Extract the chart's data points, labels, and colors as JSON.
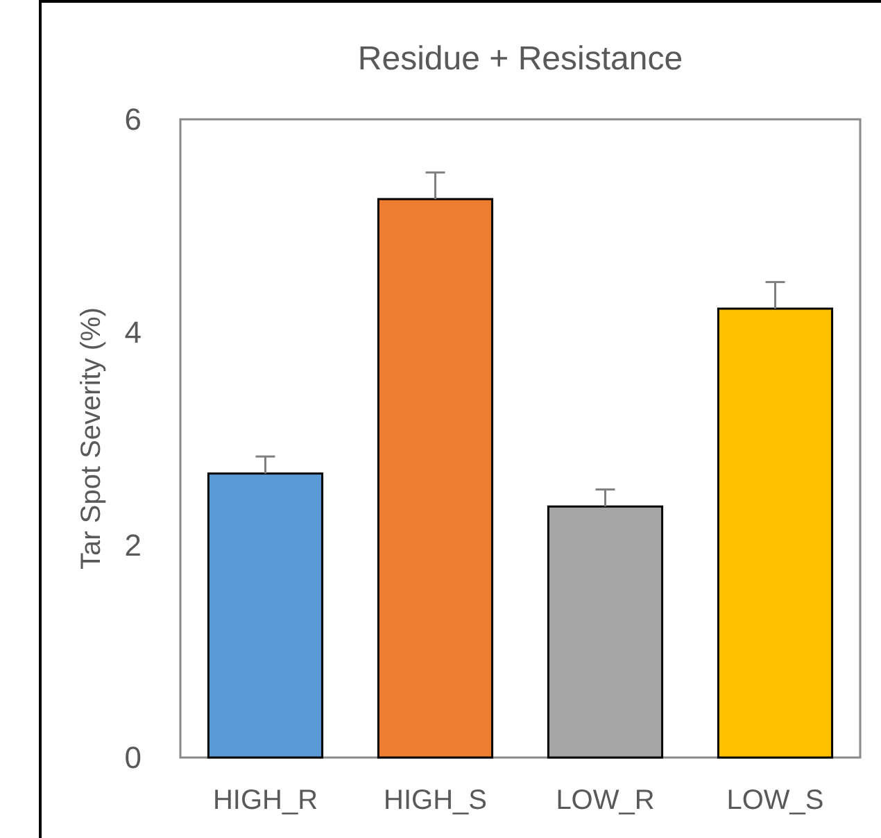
{
  "chart_data": {
    "type": "bar",
    "title": "Residue + Resistance",
    "ylabel": "Tar Spot Severity (%)",
    "categories": [
      "HIGH_R",
      "HIGH_S",
      "LOW_R",
      "LOW_S"
    ],
    "values": [
      2.67,
      5.25,
      2.36,
      4.22
    ],
    "colors": [
      "#5b9bd5",
      "#ed7d31",
      "#a5a5a5",
      "#ffc000"
    ],
    "errors": [
      [
        2.67,
        2.83
      ],
      [
        5.25,
        5.5
      ],
      [
        2.36,
        2.52
      ],
      [
        4.22,
        4.47
      ]
    ],
    "ylim": [
      0,
      6
    ],
    "yticks": [
      0,
      2,
      4,
      6
    ],
    "grid": false
  }
}
